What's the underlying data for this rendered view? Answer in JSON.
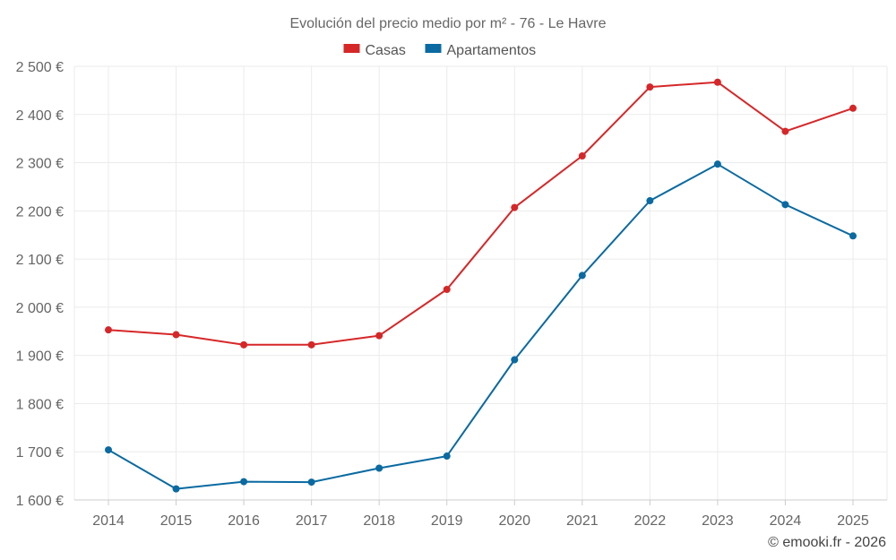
{
  "chart_data": {
    "type": "line",
    "title": "Evolución del precio medio por m² - 76 - Le Havre",
    "categories": [
      "2014",
      "2015",
      "2016",
      "2017",
      "2018",
      "2019",
      "2020",
      "2021",
      "2022",
      "2023",
      "2024",
      "2025"
    ],
    "series": [
      {
        "name": "Casas",
        "color": "#d62728",
        "values": [
          1953,
          1943,
          1922,
          1922,
          1941,
          2037,
          2207,
          2314,
          2457,
          2467,
          2365,
          2413
        ]
      },
      {
        "name": "Apartamentos",
        "color": "#0a6aa1",
        "values": [
          1704,
          1623,
          1638,
          1637,
          1666,
          1691,
          1891,
          2066,
          2221,
          2297,
          2213,
          2148
        ]
      }
    ],
    "ylim": [
      1600,
      2500
    ],
    "yticks": [
      1600,
      1700,
      1800,
      1900,
      2000,
      2100,
      2200,
      2300,
      2400,
      2500
    ],
    "ytick_labels": [
      "1 600 €",
      "1 700 €",
      "1 800 €",
      "1 900 €",
      "2 000 €",
      "2 100 €",
      "2 200 €",
      "2 300 €",
      "2 400 €",
      "2 500 €"
    ],
    "grid": true,
    "legend_position": "top-center"
  },
  "credit": "© emooki.fr - 2026"
}
